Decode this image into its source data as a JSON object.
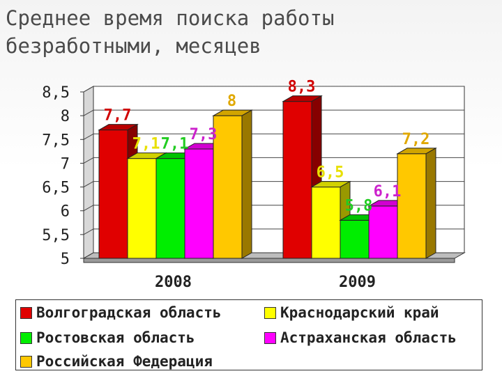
{
  "title": "Среднее время поиска работы\nбезработными, месяцев",
  "chart_data": {
    "type": "bar",
    "categories": [
      "2008",
      "2009"
    ],
    "series": [
      {
        "name": "Волгоградская область",
        "color": "#e00000",
        "label_color": "#d00000",
        "values": [
          7.7,
          8.3
        ],
        "labels": [
          "7,7",
          "8,3"
        ]
      },
      {
        "name": "Краснодарский край",
        "color": "#ffff00",
        "label_color": "#e8e000",
        "values": [
          7.1,
          6.5
        ],
        "labels": [
          "7,1",
          "6,5"
        ]
      },
      {
        "name": "Ростовская область",
        "color": "#00ee00",
        "label_color": "#22cc22",
        "values": [
          7.1,
          5.8
        ],
        "labels": [
          "7,1",
          "5,8"
        ]
      },
      {
        "name": "Астраханская область",
        "color": "#ff00ff",
        "label_color": "#cc22cc",
        "values": [
          7.3,
          6.1
        ],
        "labels": [
          "7,3",
          "6,1"
        ]
      },
      {
        "name": "Российская Федерация",
        "color": "#ffc800",
        "label_color": "#e0a800",
        "values": [
          8,
          7.2
        ],
        "labels": [
          "8",
          "7,2"
        ]
      }
    ],
    "yticks": [
      "8,5",
      "8",
      "7,5",
      "7",
      "6,5",
      "6",
      "5,5",
      "5"
    ],
    "ylim": [
      5,
      8.5
    ],
    "grid": true,
    "legend_position": "bottom"
  }
}
